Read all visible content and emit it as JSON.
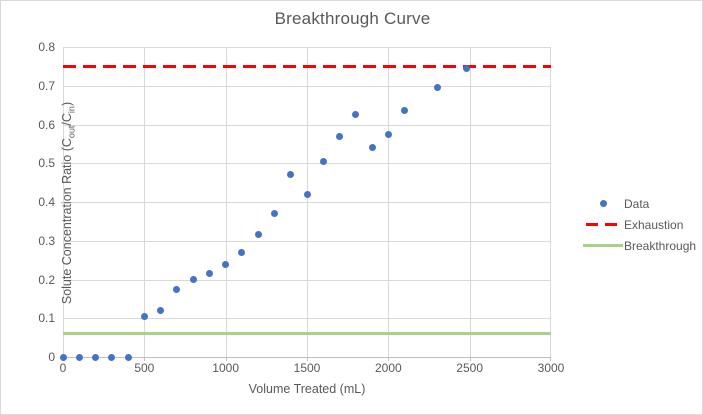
{
  "chart_data": {
    "type": "scatter",
    "title": "Breakthrough Curve",
    "xlabel": "Volume Treated (mL)",
    "ylabel": "Solute Concentration Ratio (Cout/Cin)",
    "ylabel_parts": {
      "prefix": "Solute Concentration Ratio (C",
      "sub1": "out",
      "mid": "/C",
      "sub2": "in",
      "suffix": ")"
    },
    "xlim": [
      0,
      3000
    ],
    "ylim": [
      0,
      0.8
    ],
    "x_ticks": [
      0,
      500,
      1000,
      1500,
      2000,
      2500,
      3000
    ],
    "x_tick_labels": [
      "0",
      "500",
      "1000",
      "1500",
      "2000",
      "2500",
      "3000"
    ],
    "y_ticks": [
      0,
      0.1,
      0.2,
      0.3,
      0.4,
      0.5,
      0.6,
      0.7,
      0.8
    ],
    "y_tick_labels": [
      "0",
      "0.1",
      "0.2",
      "0.3",
      "0.4",
      "0.5",
      "0.6",
      "0.7",
      "0.8"
    ],
    "grid": true,
    "legend_position": "right",
    "series": [
      {
        "name": "Data",
        "kind": "scatter",
        "color": "#4472C4",
        "x": [
          0,
          100,
          200,
          300,
          400,
          500,
          600,
          700,
          800,
          900,
          1000,
          1100,
          1200,
          1300,
          1400,
          1500,
          1600,
          1700,
          1800,
          1900,
          2000,
          2100,
          2300,
          2480
        ],
        "y": [
          0,
          0,
          0,
          0,
          0,
          0.105,
          0.12,
          0.175,
          0.2,
          0.215,
          0.24,
          0.27,
          0.315,
          0.37,
          0.47,
          0.42,
          0.505,
          0.57,
          0.625,
          0.54,
          0.575,
          0.635,
          0.695,
          0.745
        ]
      },
      {
        "name": "Exhaustion",
        "kind": "hline",
        "style": "dashed",
        "color": "#FF0000",
        "y": 0.75
      },
      {
        "name": "Breakthrough",
        "kind": "hline",
        "style": "solid",
        "color": "#A9D18E",
        "y": 0.06
      }
    ],
    "colors": {
      "grid": "#D9D9D9",
      "axis": "#BFBFBF",
      "text": "#595959",
      "background": "#FFFFFF"
    }
  }
}
